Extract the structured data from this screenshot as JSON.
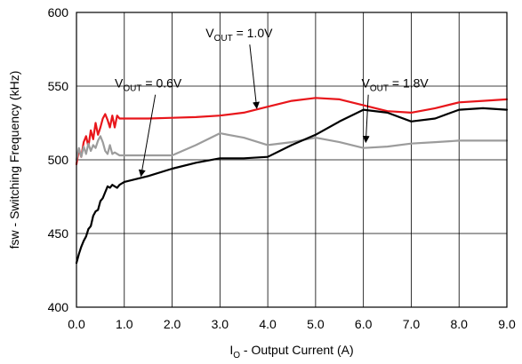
{
  "chart_data": {
    "type": "line",
    "xlabel": {
      "main": "I",
      "sub": "O",
      "rest": " - Output Current (A)"
    },
    "ylabel": "fsw - Switching Frequency (kHz)",
    "xlim": [
      0,
      9
    ],
    "ylim": [
      400,
      600
    ],
    "x_ticks": [
      "0.0",
      "1.0",
      "2.0",
      "3.0",
      "4.0",
      "5.0",
      "6.0",
      "7.0",
      "8.0",
      "9.0"
    ],
    "y_ticks": [
      "400",
      "450",
      "500",
      "550",
      "600"
    ],
    "grid": true,
    "series": [
      {
        "name": {
          "main": "V",
          "sub": "OUT",
          "rest": " = 1.0V"
        },
        "color": "#e8161b",
        "x": [
          0.0,
          0.05,
          0.1,
          0.15,
          0.2,
          0.25,
          0.3,
          0.35,
          0.4,
          0.45,
          0.5,
          0.55,
          0.6,
          0.65,
          0.7,
          0.75,
          0.8,
          0.85,
          0.9,
          1.0,
          1.5,
          2.0,
          2.5,
          3.0,
          3.5,
          4.0,
          4.5,
          5.0,
          5.5,
          6.0,
          6.5,
          7.0,
          7.5,
          8.0,
          8.5,
          9.0
        ],
        "y": [
          497,
          507,
          502,
          512,
          516,
          509,
          520,
          514,
          525,
          517,
          522,
          528,
          531,
          527,
          522,
          530,
          522,
          530,
          528,
          528,
          528,
          528.5,
          529,
          530,
          532,
          536,
          540,
          542,
          541,
          537,
          533,
          532,
          535,
          539,
          540,
          541
        ]
      },
      {
        "name": {
          "main": "V",
          "sub": "OUT",
          "rest": " = 1.8V"
        },
        "color": "#9c9c9c",
        "x": [
          0.0,
          0.05,
          0.1,
          0.15,
          0.2,
          0.25,
          0.3,
          0.35,
          0.4,
          0.45,
          0.5,
          0.55,
          0.6,
          0.65,
          0.7,
          0.75,
          0.8,
          0.9,
          1.0,
          1.5,
          2.0,
          2.5,
          3.0,
          3.5,
          4.0,
          4.5,
          5.0,
          5.5,
          6.0,
          6.5,
          7.0,
          7.5,
          8.0,
          8.5,
          9.0
        ],
        "y": [
          500,
          508,
          502,
          509,
          504,
          511,
          506,
          510,
          508,
          513,
          516,
          512,
          506,
          504,
          510,
          504,
          505,
          503,
          503,
          503,
          503,
          510,
          518,
          515,
          510,
          512,
          515,
          512,
          508,
          509,
          511,
          512,
          513,
          513,
          513
        ]
      },
      {
        "name": {
          "main": "V",
          "sub": "OUT",
          "rest": " = 0.6V"
        },
        "color": "#000000",
        "x": [
          0.0,
          0.05,
          0.1,
          0.15,
          0.2,
          0.25,
          0.3,
          0.35,
          0.4,
          0.45,
          0.5,
          0.55,
          0.6,
          0.65,
          0.7,
          0.75,
          0.8,
          0.85,
          0.9,
          1.0,
          1.5,
          2.0,
          2.5,
          3.0,
          3.5,
          4.0,
          4.5,
          5.0,
          5.5,
          6.0,
          6.5,
          7.0,
          7.5,
          8.0,
          8.5,
          9.0
        ],
        "y": [
          430,
          436,
          441,
          445,
          448,
          453,
          455,
          462,
          465,
          466,
          472,
          474,
          478,
          482,
          481,
          483,
          482,
          481,
          483,
          485,
          489,
          494,
          498,
          501,
          501,
          502,
          510,
          517,
          526,
          534,
          532,
          526,
          528,
          534,
          535,
          534
        ]
      }
    ],
    "annotations": [
      {
        "series": 0,
        "text": {
          "main": "V",
          "sub": "OUT",
          "rest": " = 1.0V"
        },
        "label_x": 3.4,
        "label_y": 586,
        "point_x": 3.77,
        "point_y": 535
      },
      {
        "series": 2,
        "text": {
          "main": "V",
          "sub": "OUT",
          "rest": " = 0.6V"
        },
        "label_x": 1.5,
        "label_y": 552,
        "point_x": 1.35,
        "point_y": 489
      },
      {
        "series": 1,
        "text": {
          "main": "V",
          "sub": "OUT",
          "rest": " = 1.8V"
        },
        "label_x": 6.66,
        "label_y": 552,
        "point_x": 6.05,
        "point_y": 512
      }
    ]
  }
}
